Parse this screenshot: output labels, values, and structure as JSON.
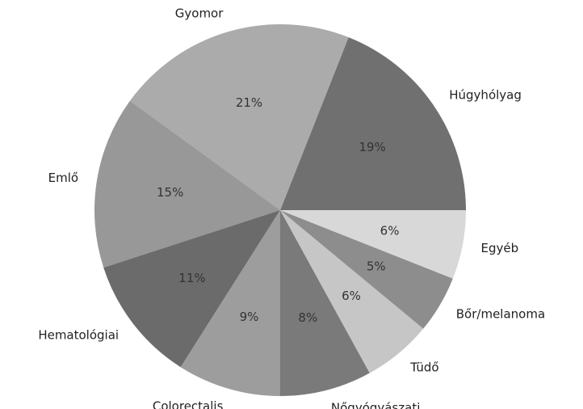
{
  "chart_data": {
    "type": "pie",
    "categories": [
      "Húgyhólyag",
      "Gyomor",
      "Emlő",
      "Hematológiai",
      "Colorectalis",
      "Nőgyógyászati",
      "Tüdő",
      "Bőr/melanoma",
      "Egyéb"
    ],
    "values": [
      19,
      21,
      15,
      11,
      9,
      8,
      6,
      5,
      6
    ],
    "value_labels": [
      "19%",
      "21%",
      "15%",
      "11%",
      "9%",
      "8%",
      "6%",
      "5%",
      "6%"
    ],
    "colors": [
      "#707070",
      "#ababab",
      "#989898",
      "#6b6b6b",
      "#9d9d9d",
      "#7a7a7a",
      "#c6c6c6",
      "#8d8d8d",
      "#d8d8d8"
    ],
    "start_angle": 0,
    "direction": "counterclockwise"
  }
}
